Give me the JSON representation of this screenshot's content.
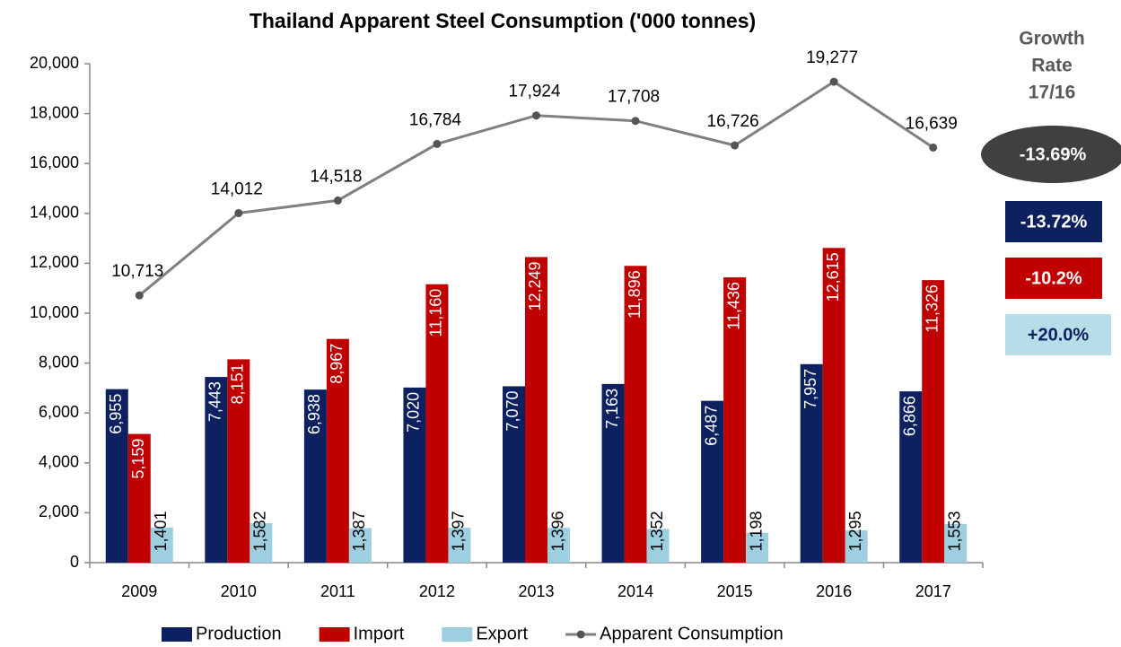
{
  "chart_data": {
    "type": "bar",
    "title": "Thailand Apparent Steel Consumption  ('000 tonnes)",
    "categories": [
      "2009",
      "2010",
      "2011",
      "2012",
      "2013",
      "2014",
      "2015",
      "2016",
      "2017"
    ],
    "series": [
      {
        "name": "Production",
        "type": "bar",
        "color": "#0d2160",
        "values": [
          6955,
          7443,
          6938,
          7020,
          7070,
          7163,
          6487,
          7957,
          6866
        ],
        "value_labels": [
          "6,955",
          "7,443",
          "6,938",
          "7,020",
          "7,070",
          "7,163",
          "6,487",
          "7,957",
          "6,866"
        ]
      },
      {
        "name": "Import",
        "type": "bar",
        "color": "#c00000",
        "values": [
          5159,
          8151,
          8967,
          11160,
          12249,
          11896,
          11436,
          12615,
          11326
        ],
        "value_labels": [
          "5,159",
          "8,151",
          "8,967",
          "11,160",
          "12,249",
          "11,896",
          "11,436",
          "12,615",
          "11,326"
        ]
      },
      {
        "name": "Export",
        "type": "bar",
        "color": "#9ecfe0",
        "values": [
          1401,
          1582,
          1387,
          1397,
          1396,
          1352,
          1198,
          1295,
          1553
        ],
        "value_labels": [
          "1,401",
          "1,582",
          "1,387",
          "1,397",
          "1,396",
          "1,352",
          "1,198",
          "1,295",
          "1,553"
        ]
      },
      {
        "name": "Apparent Consumption",
        "type": "line",
        "color": "#808080",
        "values": [
          10713,
          14012,
          14518,
          16784,
          17924,
          17708,
          16726,
          19277,
          16639
        ],
        "value_labels": [
          "10,713",
          "14,012",
          "14,518",
          "16,784",
          "17,924",
          "17,708",
          "16,726",
          "19,277",
          "16,639"
        ]
      }
    ],
    "ylim": [
      0,
      20000
    ],
    "yticks": [
      0,
      {
        "value": 2000,
        "label": "2,000"
      },
      {
        "value": 4000,
        "label": "4,000"
      },
      {
        "value": 6000,
        "label": "6,000"
      },
      {
        "value": 8000,
        "label": "8,000"
      },
      {
        "value": 10000,
        "label": "10,000"
      },
      {
        "value": 12000,
        "label": "12,000"
      },
      {
        "value": 14000,
        "label": "14,000"
      },
      {
        "value": 16000,
        "label": "16,000"
      },
      {
        "value": 18000,
        "label": "18,000"
      },
      {
        "value": 20000,
        "label": "20,000"
      }
    ],
    "legend": "bottom",
    "growth_rate": {
      "title": [
        "Growth",
        "Rate",
        "17/16"
      ],
      "items": [
        {
          "label": "-13.69%",
          "color": "#404040",
          "text_color": "#ffffff",
          "shape": "ellipse"
        },
        {
          "label": "-13.72%",
          "color": "#0d2160",
          "text_color": "#ffffff",
          "shape": "rect"
        },
        {
          "label": "-10.2%",
          "color": "#c00000",
          "text_color": "#ffffff",
          "shape": "rect"
        },
        {
          "label": "+20.0%",
          "color": "#b7dee8",
          "text_color": "#0d2160",
          "shape": "rect"
        }
      ]
    }
  }
}
